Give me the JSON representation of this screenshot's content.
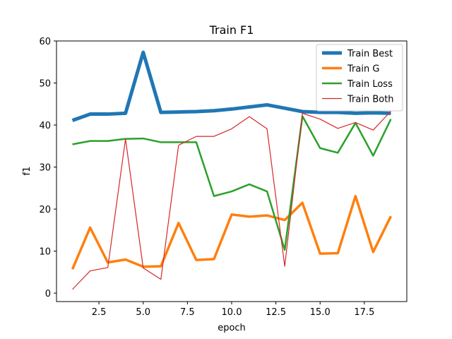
{
  "chart_data": {
    "type": "line",
    "title": "Train F1",
    "xlabel": "epoch",
    "ylabel": "f1",
    "xlim": [
      0.1,
      19.9
    ],
    "ylim": [
      -2,
      60
    ],
    "xticks": [
      2.5,
      5.0,
      7.5,
      10.0,
      12.5,
      15.0,
      17.5
    ],
    "xtick_labels": [
      "2.5",
      "5.0",
      "7.5",
      "10.0",
      "12.5",
      "15.0",
      "17.5"
    ],
    "yticks": [
      0,
      10,
      20,
      30,
      40,
      50,
      60
    ],
    "ytick_labels": [
      "0",
      "10",
      "20",
      "30",
      "40",
      "50",
      "60"
    ],
    "grid": false,
    "legend_position": "top-right",
    "x": [
      1,
      2,
      3,
      4,
      5,
      6,
      7,
      8,
      9,
      10,
      11,
      12,
      13,
      14,
      15,
      16,
      17,
      18,
      19
    ],
    "series": [
      {
        "name": "Train Best",
        "color": "#1f77b4",
        "values": [
          41.1,
          42.6,
          42.6,
          42.8,
          57.3,
          43.0,
          43.1,
          43.2,
          43.4,
          43.8,
          44.3,
          44.8,
          44.0,
          43.2,
          43.0,
          43.0,
          42.8,
          42.9,
          42.8
        ]
      },
      {
        "name": "Train G",
        "color": "#ff7f0e",
        "values": [
          5.7,
          15.6,
          7.3,
          8.0,
          6.3,
          6.4,
          16.7,
          7.9,
          8.1,
          18.7,
          18.2,
          18.5,
          17.4,
          21.5,
          9.4,
          9.5,
          23.1,
          9.8,
          18.3
        ]
      },
      {
        "name": "Train Loss",
        "color": "#2ca02c",
        "values": [
          35.4,
          36.2,
          36.2,
          36.7,
          36.8,
          35.9,
          35.9,
          35.9,
          23.1,
          24.2,
          25.9,
          24.2,
          10.3,
          42.1,
          34.5,
          33.4,
          40.5,
          32.7,
          41.4
        ]
      },
      {
        "name": "Train Both",
        "color": "#d62728",
        "values": [
          0.9,
          5.3,
          6.1,
          36.7,
          6.0,
          3.3,
          35.2,
          37.3,
          37.3,
          39.1,
          42.0,
          39.1,
          6.4,
          42.8,
          41.4,
          39.2,
          40.6,
          38.8,
          43.3
        ]
      }
    ]
  }
}
